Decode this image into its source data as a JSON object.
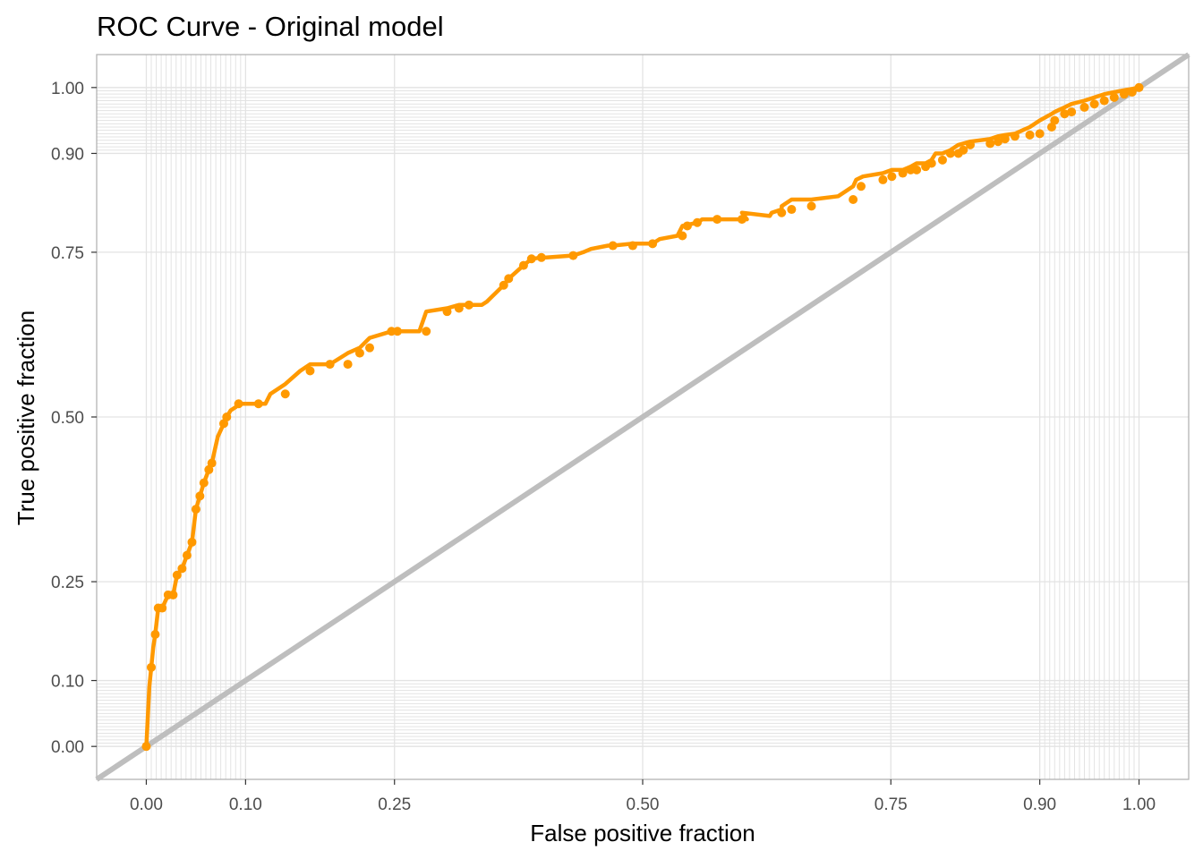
{
  "chart_data": {
    "type": "line",
    "title": "ROC Curve - Original model",
    "xlabel": "False positive fraction",
    "ylabel": "True positive fraction",
    "xlim": [
      -0.05,
      1.05
    ],
    "ylim": [
      -0.05,
      1.05
    ],
    "x_ticks": [
      0,
      0.1,
      0.25,
      0.5,
      0.75,
      0.9,
      1
    ],
    "x_tick_labels": [
      "0.00",
      "0.10",
      "0.25",
      "0.50",
      "0.75",
      "0.90",
      "1.00"
    ],
    "y_ticks": [
      0,
      0.1,
      0.25,
      0.5,
      0.75,
      0.9,
      1
    ],
    "y_tick_labels": [
      "0.00",
      "0.10",
      "0.25",
      "0.50",
      "0.75",
      "0.90",
      "1.00"
    ],
    "grid": true,
    "minor_grid_x": [
      0.005,
      0.01,
      0.015,
      0.02,
      0.025,
      0.03,
      0.035,
      0.04,
      0.045,
      0.05,
      0.055,
      0.06,
      0.065,
      0.07,
      0.075,
      0.08,
      0.085,
      0.09,
      0.095,
      0.905,
      0.91,
      0.915,
      0.92,
      0.925,
      0.93,
      0.935,
      0.94,
      0.945,
      0.95,
      0.955,
      0.96,
      0.965,
      0.97,
      0.975,
      0.98,
      0.985,
      0.99,
      0.995
    ],
    "minor_grid_y": [
      0.005,
      0.01,
      0.015,
      0.02,
      0.025,
      0.03,
      0.035,
      0.04,
      0.045,
      0.05,
      0.055,
      0.06,
      0.065,
      0.07,
      0.075,
      0.08,
      0.085,
      0.09,
      0.095,
      0.905,
      0.91,
      0.915,
      0.92,
      0.925,
      0.93,
      0.935,
      0.94,
      0.945,
      0.95,
      0.955,
      0.96,
      0.965,
      0.97,
      0.975,
      0.98,
      0.985,
      0.99,
      0.995
    ],
    "colors": {
      "roc": "#FF9900",
      "reference": "#BEBEBE",
      "grid": "#E3E3E3",
      "border": "#B3B3B3",
      "tick_label": "#4D4D4D"
    },
    "reference_line": {
      "x": [
        -0.05,
        1.05
      ],
      "y": [
        -0.05,
        1.05
      ]
    },
    "series": [
      {
        "name": "",
        "x": [
          0,
          0.002,
          0.003,
          0.005,
          0.007,
          0.009,
          0.012,
          0.016,
          0.022,
          0.027,
          0.031,
          0.036,
          0.041,
          0.046,
          0.05,
          0.054,
          0.058,
          0.063,
          0.066,
          0.069,
          0.072,
          0.078,
          0.081,
          0.085,
          0.09,
          0.093,
          0.1,
          0.113,
          0.12,
          0.125,
          0.14,
          0.155,
          0.165,
          0.185,
          0.203,
          0.215,
          0.225,
          0.247,
          0.253,
          0.275,
          0.282,
          0.303,
          0.315,
          0.338,
          0.343,
          0.36,
          0.365,
          0.38,
          0.388,
          0.398,
          0.403,
          0.43,
          0.44,
          0.448,
          0.465,
          0.47,
          0.49,
          0.51,
          0.517,
          0.535,
          0.54,
          0.555,
          0.56,
          0.57,
          0.582,
          0.595,
          0.605,
          0.6,
          0.628,
          0.63,
          0.64,
          0.64,
          0.65,
          0.67,
          0.697,
          0.712,
          0.715,
          0.722,
          0.742,
          0.751,
          0.762,
          0.77,
          0.776,
          0.785,
          0.791,
          0.795,
          0.802,
          0.81,
          0.818,
          0.823,
          0.83,
          0.85,
          0.858,
          0.865,
          0.875,
          0.89,
          0.9,
          0.912,
          0.915,
          0.925,
          0.932,
          0.945,
          0.955,
          0.965,
          0.975,
          0.985,
          0.993,
          1
        ],
        "y": [
          0,
          0.06,
          0.09,
          0.12,
          0.15,
          0.17,
          0.21,
          0.21,
          0.23,
          0.23,
          0.26,
          0.27,
          0.29,
          0.31,
          0.36,
          0.38,
          0.4,
          0.42,
          0.43,
          0.45,
          0.47,
          0.49,
          0.5,
          0.51,
          0.515,
          0.52,
          0.52,
          0.52,
          0.52,
          0.535,
          0.55,
          0.57,
          0.58,
          0.58,
          0.597,
          0.605,
          0.62,
          0.63,
          0.63,
          0.63,
          0.66,
          0.665,
          0.67,
          0.67,
          0.675,
          0.7,
          0.71,
          0.73,
          0.74,
          0.742,
          0.742,
          0.745,
          0.75,
          0.755,
          0.76,
          0.76,
          0.763,
          0.763,
          0.77,
          0.775,
          0.79,
          0.795,
          0.8,
          0.8,
          0.8,
          0.8,
          0.8,
          0.81,
          0.805,
          0.81,
          0.815,
          0.82,
          0.83,
          0.83,
          0.835,
          0.85,
          0.86,
          0.865,
          0.87,
          0.875,
          0.875,
          0.88,
          0.885,
          0.885,
          0.89,
          0.9,
          0.9,
          0.905,
          0.913,
          0.915,
          0.918,
          0.922,
          0.926,
          0.928,
          0.93,
          0.94,
          0.95,
          0.96,
          0.963,
          0.97,
          0.975,
          0.98,
          0.985,
          0.99,
          0.993,
          0.996,
          0.998,
          1
        ]
      }
    ],
    "points": {
      "x": [
        0,
        0.005,
        0.009,
        0.012,
        0.016,
        0.022,
        0.027,
        0.031,
        0.036,
        0.041,
        0.046,
        0.05,
        0.054,
        0.058,
        0.063,
        0.066,
        0.078,
        0.081,
        0.093,
        0.113,
        0.14,
        0.165,
        0.185,
        0.203,
        0.215,
        0.225,
        0.247,
        0.253,
        0.282,
        0.303,
        0.315,
        0.325,
        0.36,
        0.365,
        0.38,
        0.388,
        0.398,
        0.43,
        0.47,
        0.49,
        0.51,
        0.54,
        0.545,
        0.555,
        0.575,
        0.6,
        0.64,
        0.65,
        0.67,
        0.712,
        0.72,
        0.742,
        0.751,
        0.762,
        0.77,
        0.776,
        0.785,
        0.791,
        0.802,
        0.81,
        0.818,
        0.823,
        0.83,
        0.85,
        0.858,
        0.865,
        0.875,
        0.89,
        0.9,
        0.912,
        0.915,
        0.925,
        0.932,
        0.945,
        0.955,
        0.965,
        0.975,
        0.985,
        0.993,
        1
      ],
      "y": [
        0,
        0.12,
        0.17,
        0.21,
        0.21,
        0.23,
        0.23,
        0.26,
        0.27,
        0.29,
        0.31,
        0.36,
        0.38,
        0.4,
        0.42,
        0.43,
        0.49,
        0.5,
        0.52,
        0.52,
        0.535,
        0.57,
        0.58,
        0.58,
        0.597,
        0.605,
        0.63,
        0.63,
        0.63,
        0.66,
        0.665,
        0.67,
        0.7,
        0.71,
        0.73,
        0.74,
        0.742,
        0.745,
        0.76,
        0.76,
        0.763,
        0.775,
        0.79,
        0.795,
        0.8,
        0.8,
        0.81,
        0.815,
        0.82,
        0.83,
        0.85,
        0.86,
        0.865,
        0.87,
        0.875,
        0.875,
        0.88,
        0.885,
        0.89,
        0.9,
        0.9,
        0.905,
        0.913,
        0.915,
        0.918,
        0.922,
        0.926,
        0.928,
        0.93,
        0.94,
        0.95,
        0.96,
        0.963,
        0.97,
        0.975,
        0.98,
        0.985,
        0.99,
        0.993,
        1
      ]
    }
  }
}
